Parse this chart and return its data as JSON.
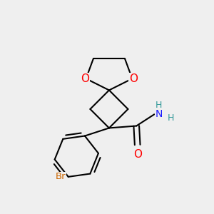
{
  "background_color": "#efefef",
  "bond_color": "#000000",
  "bond_width": 1.5,
  "O_color": "#ff0000",
  "N_color": "#1a1aff",
  "Br_color": "#cc6600",
  "figsize": [
    3.0,
    3.0
  ],
  "dpi": 100,
  "xlim": [
    0,
    10
  ],
  "ylim": [
    0,
    10
  ],
  "spiro_x": 5.1,
  "spiro_y": 5.8,
  "c2_x": 5.1,
  "c2_y": 4.0
}
